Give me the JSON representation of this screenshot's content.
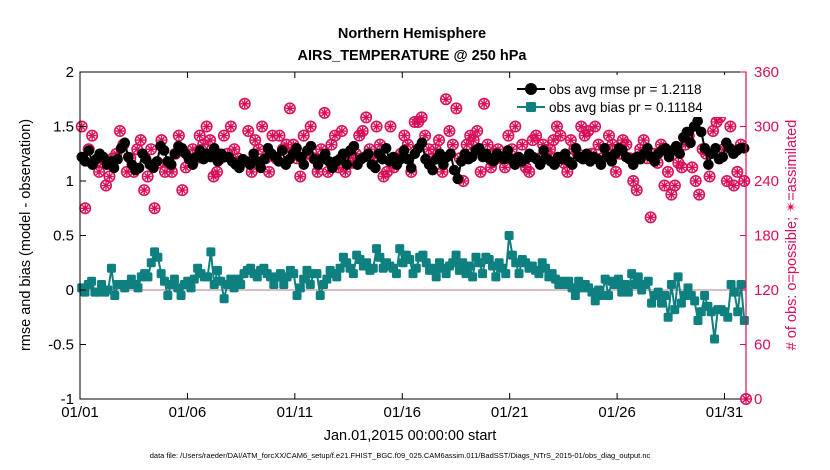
{
  "chart_data": {
    "type": "line",
    "title": "Northern Hemisphere",
    "subtitle": "AIRS_TEMPERATURE @ 250 hPa",
    "xlabel": "Jan.01,2015 00:00:00 start",
    "ylabel": "rmse and bias (model - observation)",
    "ylabel_right": "# of obs: o=possible; ✴=assimilated",
    "x_ticks": [
      "01/01",
      "01/06",
      "01/11",
      "01/16",
      "01/21",
      "01/26",
      "01/31"
    ],
    "y_ticks": [
      "-1",
      "-0.5",
      "0",
      "0.5",
      "1",
      "1.5",
      "2"
    ],
    "y2_ticks": [
      "0",
      "60",
      "120",
      "180",
      "240",
      "300",
      "360"
    ],
    "xlim": [
      0,
      31
    ],
    "ylim": [
      -1,
      2
    ],
    "y2lim": [
      0,
      360
    ],
    "legend_position": "top-right",
    "footnote": "data file: /Users/raeder/DAI/ATM_forcXX/CAM6_setup/f.e21.FHIST_BGC.f09_025.CAM6assim.011/BadSST/Diags_NTrS_2015-01/obs_diag_output.nc",
    "colors": {
      "rmse": "#000000",
      "bias": "#0f8080",
      "obs": "#d90f5a",
      "zero_line": "#d9bcc4"
    },
    "series": [
      {
        "name": "obs avg rmse pr = 1.2118",
        "axis": "left",
        "color": "#000000",
        "values": [
          1.22,
          1.18,
          1.28,
          1.15,
          1.2,
          1.25,
          1.22,
          1.15,
          1.18,
          1.12,
          1.2,
          1.3,
          1.35,
          1.22,
          1.15,
          1.1,
          1.12,
          1.25,
          1.2,
          1.15,
          1.12,
          1.18,
          1.32,
          1.28,
          1.18,
          1.15,
          1.25,
          1.32,
          1.3,
          1.25,
          1.2,
          1.15,
          1.22,
          1.28,
          1.2,
          1.25,
          1.22,
          1.3,
          1.18,
          1.25,
          1.22,
          1.22,
          1.18,
          1.15,
          1.12,
          1.2,
          1.18,
          1.15,
          1.25,
          1.18,
          1.12,
          1.2,
          1.3,
          1.25,
          1.22,
          1.18,
          1.28,
          1.15,
          1.2,
          1.25,
          1.3,
          1.22,
          1.15,
          1.28,
          1.32,
          1.2,
          1.15,
          1.2,
          1.25,
          1.18,
          1.12,
          1.18,
          1.2,
          1.25,
          1.15,
          1.28,
          1.32,
          1.15,
          1.2,
          1.22,
          1.25,
          1.15,
          1.12,
          1.25,
          1.2,
          1.3,
          1.18,
          1.22,
          1.15,
          1.2,
          1.28,
          1.2,
          1.12,
          1.25,
          1.3,
          1.35,
          1.2,
          1.15,
          1.1,
          1.2,
          1.25,
          1.15,
          1.22,
          1.25,
          1.1,
          1.02,
          1.18,
          1.25,
          1.2,
          1.22,
          1.28,
          1.3,
          1.22,
          1.25,
          1.2,
          1.18,
          1.25,
          1.22,
          1.2,
          1.28,
          1.2,
          1.15,
          1.22,
          1.18,
          1.2,
          1.25,
          1.22,
          1.2,
          1.15,
          1.28,
          1.2,
          1.18,
          1.15,
          1.22,
          1.2,
          1.25,
          1.18,
          1.15,
          1.3,
          1.22,
          1.2,
          1.25,
          1.18,
          1.22,
          1.2,
          1.15,
          1.3,
          1.22,
          1.18,
          1.25,
          1.3,
          1.28,
          1.22,
          1.2,
          1.15,
          1.22,
          1.2,
          1.25,
          1.3,
          1.22,
          1.18,
          1.25,
          1.28,
          1.3,
          1.22,
          1.28,
          1.32,
          1.25,
          1.4,
          1.45,
          1.35,
          1.5,
          1.55,
          1.45,
          1.3,
          1.15,
          1.25,
          1.3,
          1.2,
          1.22,
          1.35,
          1.3,
          1.25,
          1.28,
          1.3,
          1.3
        ]
      },
      {
        "name": "obs avg bias pr = 0.11184",
        "axis": "left",
        "color": "#0f8080",
        "values": [
          0.02,
          -0.02,
          0.05,
          0.08,
          -0.02,
          -0.02,
          0.05,
          -0.02,
          0.0,
          0.2,
          -0.05,
          0.05,
          0.05,
          0.02,
          0.05,
          0.1,
          0.05,
          0.02,
          0.12,
          0.15,
          0.12,
          0.25,
          0.35,
          0.3,
          0.15,
          0.08,
          -0.05,
          0.05,
          0.1,
          0.02,
          -0.05,
          0.05,
          0.08,
          0.02,
          0.1,
          0.2,
          0.15,
          0.12,
          0.12,
          0.35,
          0.05,
          0.18,
          0.08,
          -0.08,
          0.05,
          0.1,
          0.02,
          0.1,
          0.05,
          0.15,
          0.18,
          0.2,
          0.15,
          0.12,
          0.18,
          0.2,
          0.15,
          0.12,
          0.05,
          0.12,
          0.15,
          0.05,
          0.12,
          0.18,
          0.15,
          -0.05,
          0.02,
          0.1,
          0.18,
          0.05,
          0.15,
          0.15,
          -0.05,
          0.05,
          0.1,
          0.18,
          0.15,
          0.12,
          0.2,
          0.3,
          0.25,
          0.2,
          0.15,
          0.32,
          0.28,
          0.22,
          0.25,
          0.18,
          0.2,
          0.38,
          0.3,
          0.2,
          0.25,
          0.22,
          0.2,
          0.15,
          0.38,
          0.25,
          0.32,
          0.28,
          0.15,
          0.2,
          0.3,
          0.32,
          0.25,
          0.18,
          0.2,
          0.12,
          0.25,
          0.2,
          0.15,
          0.22,
          0.25,
          0.32,
          0.18,
          0.25,
          0.15,
          0.22,
          0.12,
          0.3,
          0.25,
          0.15,
          0.3,
          0.28,
          0.22,
          0.12,
          0.25,
          0.2,
          0.15,
          0.5,
          0.32,
          0.25,
          0.15,
          0.28,
          0.25,
          0.2,
          0.22,
          0.18,
          0.15,
          0.25,
          0.2,
          0.12,
          0.15,
          0.1,
          0.05,
          0.08,
          0.05,
          0.08,
          0.02,
          -0.05,
          0.08,
          0.02,
          0.05,
          0.02,
          -0.02,
          -0.1,
          0.0,
          -0.05,
          0.1,
          -0.05,
          0.08,
          0.05,
          0.1,
          -0.02,
          0.05,
          -0.02,
          0.15,
          0.05,
          0.12,
          0.0,
          0.05,
          0.08,
          -0.12,
          -0.05,
          -0.02,
          -0.12,
          -0.05,
          -0.25,
          0.05,
          -0.18,
          0.12,
          -0.12,
          -0.05,
          0.02,
          -0.05,
          -0.1,
          -0.28,
          -0.2,
          -0.05,
          -0.15,
          -0.2,
          -0.45,
          -0.18,
          -0.18,
          -0.2,
          -0.25,
          0.05,
          -0.02,
          -0.2,
          0.05,
          -0.28
        ]
      },
      {
        "name": "# of obs possible",
        "axis": "right",
        "color": "#d90f5a",
        "values": [
          300,
          210,
          275,
          290,
          260,
          250,
          260,
          235,
          245,
          265,
          270,
          295,
          280,
          250,
          265,
          250,
          275,
          285,
          230,
          245,
          275,
          210,
          260,
          285,
          250,
          260,
          250,
          270,
          290,
          230,
          255,
          265,
          275,
          265,
          290,
          280,
          300,
          285,
          245,
          250,
          265,
          290,
          270,
          300,
          275,
          265,
          260,
          325,
          295,
          250,
          285,
          275,
          300,
          265,
          250,
          290,
          265,
          290,
          275,
          280,
          320,
          280,
          265,
          245,
          290,
          270,
          300,
          265,
          250,
          275,
          315,
          250,
          280,
          290,
          255,
          295,
          250,
          265,
          260,
          270,
          290,
          295,
          310,
          275,
          265,
          300,
          280,
          245,
          250,
          300,
          255,
          265,
          270,
          290,
          280,
          250,
          305,
          305,
          310,
          290,
          275,
          265,
          275,
          285,
          250,
          330,
          295,
          280,
          320,
          265,
          240,
          280,
          290,
          285,
          295,
          250,
          325,
          280,
          255,
          270,
          275,
          265,
          255,
          290,
          275,
          300,
          265,
          280,
          255,
          250,
          285,
          290,
          265,
          280,
          270,
          275,
          285,
          300,
          290,
          260,
          250,
          285,
          275,
          270,
          300,
          290,
          295,
          270,
          300,
          280,
          265,
          275,
          290,
          280,
          250,
          270,
          285,
          280,
          265,
          240,
          230,
          275,
          285,
          265,
          200,
          270,
          260,
          280,
          235,
          250,
          225,
          235,
          260,
          255,
          280,
          290,
          255,
          240,
          225,
          275,
          270,
          245,
          295,
          305,
          310,
          275,
          240,
          300,
          235,
          250,
          280,
          240
        ],
        "marker": "o"
      }
    ]
  },
  "legend": [
    "obs avg rmse pr = 1.2118",
    "obs avg bias pr = 0.11184"
  ]
}
